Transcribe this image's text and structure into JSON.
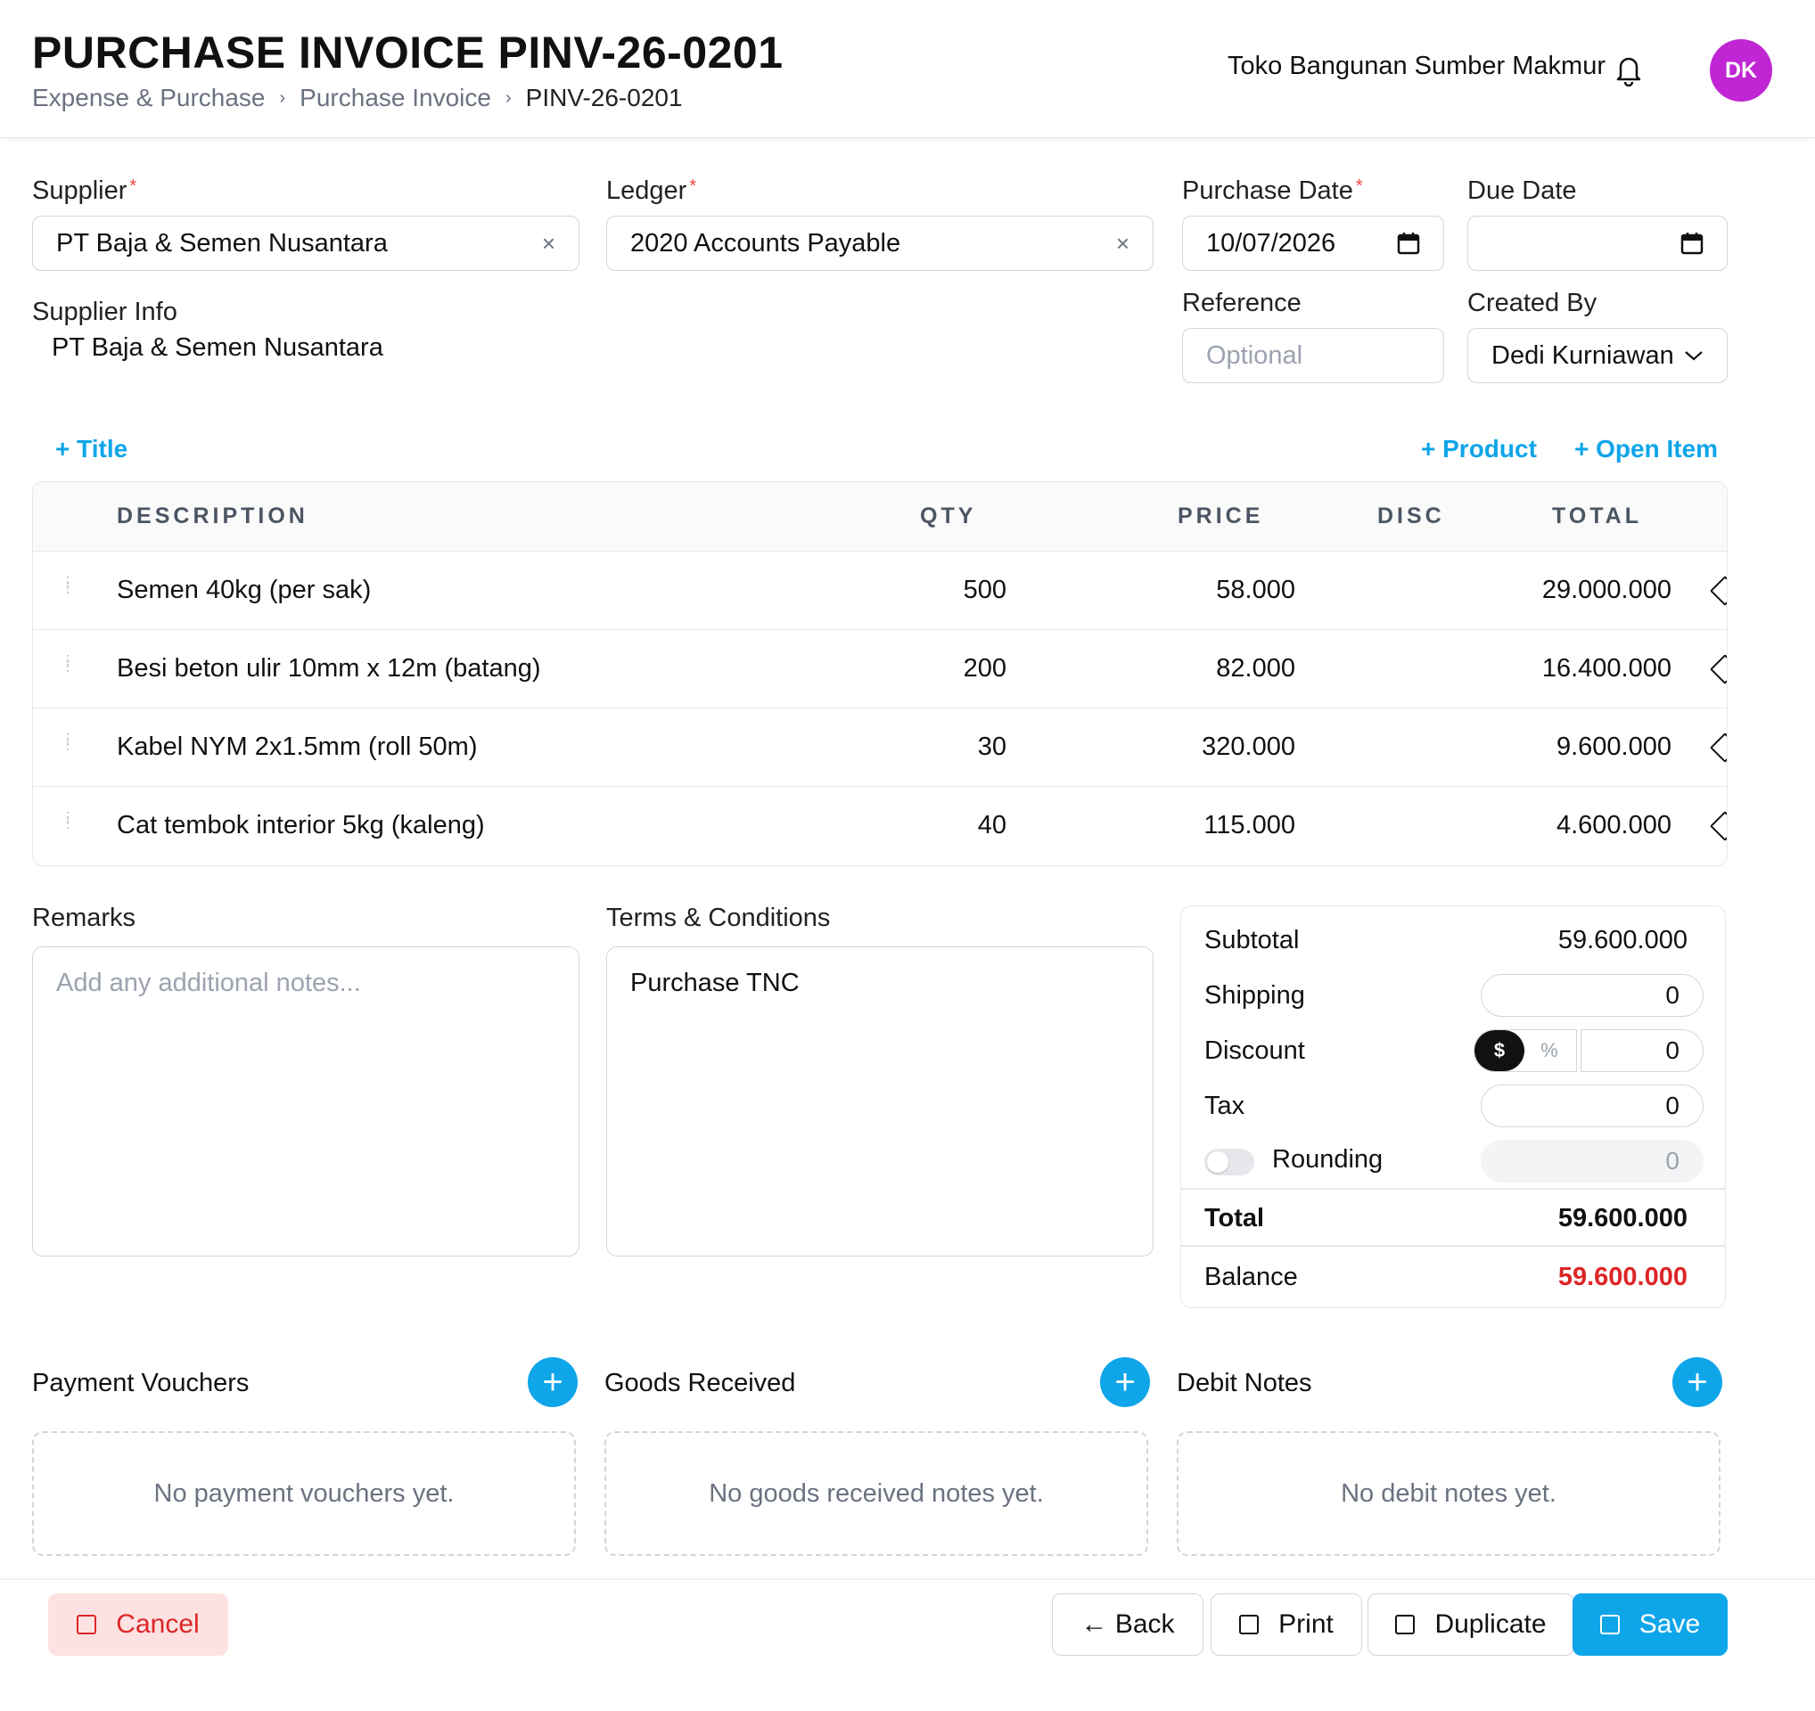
{
  "header": {
    "title": "PURCHASE INVOICE PINV-26-0201",
    "breadcrumb": [
      "Expense & Purchase",
      "Purchase Invoice",
      "PINV-26-0201"
    ],
    "breadcrumb_separator": "›",
    "company": "Toko Bangunan Sumber Makmur",
    "avatar_initials": "DK",
    "avatar_color": "#c026d3"
  },
  "form": {
    "supplier": {
      "label": "Supplier",
      "value": "PT Baja & Semen Nusantara"
    },
    "ledger": {
      "label": "Ledger",
      "value": "2020 Accounts Payable"
    },
    "purchase_date": {
      "label": "Purchase Date",
      "value": "10/07/2026"
    },
    "due_date": {
      "label": "Due Date",
      "value": ""
    },
    "supplier_info": {
      "label": "Supplier Info",
      "value": "PT Baja & Semen Nusantara"
    },
    "reference": {
      "label": "Reference",
      "placeholder": "Optional"
    },
    "created_by": {
      "label": "Created By",
      "value": "Dedi Kurniawan"
    },
    "required_marker": "*",
    "clear_glyph": "×",
    "dropdown_glyph": "⌄"
  },
  "actions": {
    "add_title": "+ Title",
    "add_product": "+ Product",
    "add_open_item": "+ Open Item"
  },
  "items": {
    "columns": [
      "DESCRIPTION",
      "QTY",
      "PRICE",
      "DISC",
      "TOTAL"
    ],
    "rows": [
      {
        "description": "Semen 40kg (per sak)",
        "qty": "500",
        "price": "58.000",
        "disc": "",
        "total": "29.000.000"
      },
      {
        "description": "Besi beton ulir 10mm x 12m (batang)",
        "qty": "200",
        "price": "82.000",
        "disc": "",
        "total": "16.400.000"
      },
      {
        "description": "Kabel NYM 2x1.5mm (roll 50m)",
        "qty": "30",
        "price": "320.000",
        "disc": "",
        "total": "9.600.000"
      },
      {
        "description": "Cat tembok interior 5kg (kaleng)",
        "qty": "40",
        "price": "115.000",
        "disc": "",
        "total": "4.600.000"
      }
    ]
  },
  "remarks": {
    "label": "Remarks",
    "placeholder": "Add any additional notes..."
  },
  "terms": {
    "label": "Terms & Conditions",
    "value": "Purchase TNC"
  },
  "totals": {
    "subtotal_label": "Subtotal",
    "subtotal": "59.600.000",
    "shipping_label": "Shipping",
    "shipping": "0",
    "discount_label": "Discount",
    "discount": "0",
    "discount_mode_amount": "$",
    "discount_mode_percent": "%",
    "tax_label": "Tax",
    "tax": "0",
    "rounding_label": "Rounding",
    "rounding": "0",
    "rounding_enabled": false,
    "total_label": "Total",
    "total": "59.600.000",
    "balance_label": "Balance",
    "balance": "59.600.000",
    "balance_color": "#dc2626"
  },
  "sections": {
    "payment_vouchers": {
      "title": "Payment Vouchers",
      "empty": "No payment vouchers yet."
    },
    "goods_received": {
      "title": "Goods Received",
      "empty": "No goods received notes yet."
    },
    "debit_notes": {
      "title": "Debit Notes",
      "empty": "No debit notes yet."
    },
    "add_glyph": "+"
  },
  "footer": {
    "cancel": "Cancel",
    "back": "← Back",
    "print": "Print",
    "duplicate": "Duplicate",
    "save": "Save"
  },
  "colors": {
    "accent": "#0ea5e9",
    "danger": "#dc2626",
    "cancel_bg": "#fee2e2"
  }
}
